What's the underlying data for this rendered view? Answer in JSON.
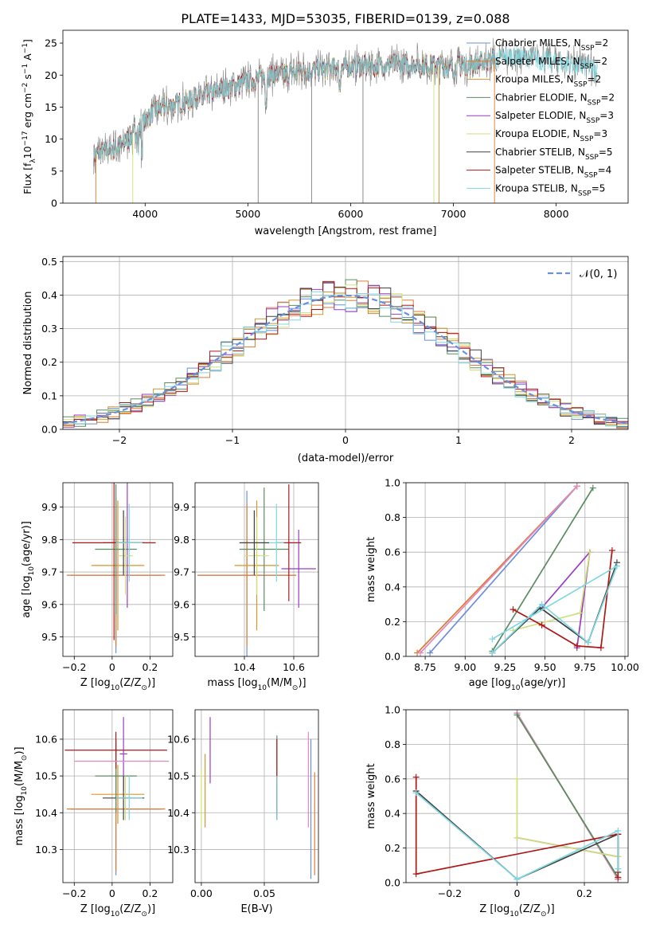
{
  "figure_title": "PLATE=1433, MJD=53035, FIBERID=0139, z=0.088",
  "series_colors": [
    "#6a8fdb",
    "#e07a30",
    "#d6962a",
    "#5c8c62",
    "#9a3cc4",
    "#cfe07a",
    "#404040",
    "#b01818",
    "#7fd8e0"
  ],
  "chart_data": [
    {
      "id": "spectrum",
      "type": "line",
      "xlabel": "wavelength [Angstrom, rest frame]",
      "ylabel": "Flux [f",
      "ylabel_sub": "λ",
      "ylabel_rest": "10",
      "ylabel_exp": "−17",
      "ylabel_unit": " erg cm",
      "ylabel_unit2": " s",
      "ylabel_unit3": " A",
      "xlim": [
        3200,
        8700
      ],
      "ylim": [
        0,
        27
      ],
      "xticks": [
        4000,
        5000,
        6000,
        7000,
        8000
      ],
      "yticks": [
        0,
        5,
        10,
        15,
        20,
        25
      ],
      "legend": [
        {
          "name": "Chabrier MILES, N",
          "sub": "SSP",
          "tail": "=2"
        },
        {
          "name": "Salpeter MILES, N",
          "sub": "SSP",
          "tail": "=2"
        },
        {
          "name": "Kroupa MILES, N",
          "sub": "SSP",
          "tail": "=2"
        },
        {
          "name": "Chabrier ELODIE, N",
          "sub": "SSP",
          "tail": "=2"
        },
        {
          "name": "Salpeter ELODIE, N",
          "sub": "SSP",
          "tail": "=3"
        },
        {
          "name": "Kroupa ELODIE, N",
          "sub": "SSP",
          "tail": "=3"
        },
        {
          "name": "Chabrier STELIB, N",
          "sub": "SSP",
          "tail": "=5"
        },
        {
          "name": "Salpeter STELIB, N",
          "sub": "SSP",
          "tail": "=4"
        },
        {
          "name": "Kroupa STELIB, N",
          "sub": "SSP",
          "tail": "=5"
        }
      ],
      "continuum": {
        "x": [
          3500,
          3600,
          3700,
          3800,
          3900,
          4000,
          4100,
          4300,
          4500,
          4700,
          5000,
          5200,
          5500,
          5800,
          6000,
          6300,
          6600,
          6800,
          7000,
          7200,
          7400,
          7600,
          7800,
          8000,
          8200,
          8400
        ],
        "y": [
          7.5,
          8.0,
          8.5,
          9.5,
          11.0,
          13.0,
          14.5,
          15.5,
          16.5,
          17.5,
          19.0,
          19.8,
          20.5,
          21.0,
          21.3,
          21.5,
          21.8,
          21.5,
          21.2,
          21.8,
          22.5,
          23.0,
          22.5,
          22.0,
          21.5,
          21.0
        ]
      }
    },
    {
      "id": "residual_hist",
      "type": "histogram",
      "xlabel": "(data-model)/error",
      "ylabel": "Normed distribution",
      "xlim": [
        -2.5,
        2.5
      ],
      "ylim": [
        0,
        0.515
      ],
      "xticks": [
        -2,
        -1,
        0,
        1,
        2
      ],
      "yticks": [
        0.0,
        0.1,
        0.2,
        0.3,
        0.4,
        0.5
      ],
      "legend": "𝒩(0, 1)",
      "bin_width": 0.1
    },
    {
      "id": "age_vs_Z",
      "type": "errorbar",
      "xlabel": "Z [log",
      "xlabel_sub": "10",
      "xlabel_rest": "(Z/Z",
      "xlabel_sub2": "⊙",
      "xlabel_end": ")]",
      "ylabel": "age  [log",
      "ylabel_sub": "10",
      "ylabel_rest": "(age/yr)]",
      "xlim": [
        -0.26,
        0.32
      ],
      "ylim": [
        9.44,
        9.975
      ],
      "xticks": [
        -0.2,
        0.0,
        0.2
      ],
      "yticks": [
        9.5,
        9.6,
        9.7,
        9.8,
        9.9
      ],
      "points": [
        {
          "x": 0.02,
          "xerr": 0.24,
          "y": 9.69,
          "yerr": 0.24
        },
        {
          "x": 0.02,
          "xerr": 0.26,
          "y": 9.69,
          "yerr": 0.22
        },
        {
          "x": 0.03,
          "xerr": 0.14,
          "y": 9.72,
          "yerr": 0.2
        },
        {
          "x": 0.02,
          "xerr": 0.11,
          "y": 9.77,
          "yerr": 0.2
        },
        {
          "x": 0.08,
          "xerr": 0.08,
          "y": 9.79,
          "yerr": 0.2
        },
        {
          "x": 0.07,
          "xerr": 0.04,
          "y": 9.75,
          "yerr": 0.12
        },
        {
          "x": 0.06,
          "xerr": 0.11,
          "y": 9.79,
          "yerr": 0.1
        },
        {
          "x": 0.01,
          "xerr": 0.22,
          "y": 9.79,
          "yerr": 0.3
        },
        {
          "x": 0.09,
          "xerr": 0.07,
          "y": 9.79,
          "yerr": 0.12
        }
      ]
    },
    {
      "id": "age_vs_mass",
      "type": "errorbar",
      "xlabel": "mass [log",
      "xlabel_sub": "10",
      "xlabel_rest": "(M/M",
      "xlabel_sub2": "⊙",
      "xlabel_end": ")]",
      "xlim": [
        10.2,
        10.7
      ],
      "ylim": [
        9.44,
        9.975
      ],
      "xticks": [
        10.4,
        10.6
      ],
      "yticks": [
        9.5,
        9.6,
        9.7,
        9.8,
        9.9
      ],
      "points": [
        {
          "x": 10.41,
          "xerr": 0.2,
          "y": 9.69,
          "yerr": 0.26
        },
        {
          "x": 10.41,
          "xerr": 0.2,
          "y": 9.69,
          "yerr": 0.22
        },
        {
          "x": 10.45,
          "xerr": 0.09,
          "y": 9.72,
          "yerr": 0.2
        },
        {
          "x": 10.48,
          "xerr": 0.1,
          "y": 9.77,
          "yerr": 0.19
        },
        {
          "x": 10.62,
          "xerr": 0.07,
          "y": 9.71,
          "yerr": 0.12
        },
        {
          "x": 10.45,
          "xerr": 0.05,
          "y": 9.75,
          "yerr": 0.12
        },
        {
          "x": 10.44,
          "xerr": 0.06,
          "y": 9.79,
          "yerr": 0.1
        },
        {
          "x": 10.58,
          "xerr": 0.05,
          "y": 9.79,
          "yerr": 0.18
        },
        {
          "x": 10.53,
          "xerr": 0.03,
          "y": 9.79,
          "yerr": 0.12
        }
      ]
    },
    {
      "id": "weight_vs_age",
      "type": "line",
      "xlabel": "age  [log",
      "xlabel_sub": "10",
      "xlabel_rest": "(age/yr)]",
      "ylabel": "mass weight",
      "xlim": [
        8.63,
        10.02
      ],
      "ylim": [
        0,
        1.0
      ],
      "xticks": [
        8.75,
        9.0,
        9.25,
        9.5,
        9.75,
        10.0
      ],
      "xtick_labels": [
        "8.75",
        "9.00",
        "9.25",
        "9.50",
        "9.75",
        "10.00"
      ],
      "yticks": [
        0.0,
        0.2,
        0.4,
        0.6,
        0.8,
        1.0
      ],
      "series": [
        {
          "x": [
            8.78,
            9.7
          ],
          "y": [
            0.02,
            0.98
          ]
        },
        {
          "x": [
            8.7,
            9.7
          ],
          "y": [
            0.02,
            0.98
          ]
        },
        {
          "x": [
            8.72,
            9.7
          ],
          "y": [
            0.02,
            0.98
          ]
        },
        {
          "x": [
            9.17,
            9.8
          ],
          "y": [
            0.03,
            0.97
          ]
        },
        {
          "x": [
            9.7,
            9.78,
            9.48
          ],
          "y": [
            0.05,
            0.6,
            0.28
          ]
        },
        {
          "x": [
            9.3,
            9.72,
            9.78
          ],
          "y": [
            0.15,
            0.25,
            0.6
          ]
        },
        {
          "x": [
            9.17,
            9.47,
            9.77,
            9.95
          ],
          "y": [
            0.02,
            0.28,
            0.08,
            0.54
          ]
        },
        {
          "x": [
            9.3,
            9.48,
            9.7,
            9.85,
            9.92
          ],
          "y": [
            0.27,
            0.18,
            0.06,
            0.05,
            0.61
          ]
        },
        {
          "x": [
            9.17,
            9.48,
            9.77,
            9.95,
            9.17
          ],
          "y": [
            0.02,
            0.3,
            0.08,
            0.52,
            0.1
          ]
        }
      ]
    },
    {
      "id": "mass_vs_Z",
      "type": "errorbar",
      "xlabel": "Z [log",
      "xlabel_sub": "10",
      "xlabel_rest": "(Z/Z",
      "xlabel_sub2": "⊙",
      "xlabel_end": ")]",
      "ylabel": "mass [log",
      "ylabel_sub": "10",
      "ylabel_rest": "(M/M",
      "ylabel_sub2": "⊙",
      "ylabel_end": ")]",
      "xlim": [
        -0.26,
        0.32
      ],
      "ylim": [
        10.21,
        10.68
      ],
      "xticks": [
        -0.2,
        0.0,
        0.2
      ],
      "yticks": [
        10.3,
        10.4,
        10.5,
        10.6
      ],
      "points": [
        {
          "x": 0.02,
          "xerr": 0.24,
          "y": 10.41,
          "yerr": 0.18
        },
        {
          "x": 0.02,
          "xerr": 0.26,
          "y": 10.41,
          "yerr": 0.17
        },
        {
          "x": 0.03,
          "xerr": 0.14,
          "y": 10.45,
          "yerr": 0.08
        },
        {
          "x": 0.02,
          "xerr": 0.11,
          "y": 10.5,
          "yerr": 0.1
        },
        {
          "x": 0.06,
          "xerr": 0.02,
          "y": 10.56,
          "yerr": 0.1
        },
        {
          "x": 0.07,
          "xerr": 0.04,
          "y": 10.44,
          "yerr": 0.06
        },
        {
          "x": 0.06,
          "xerr": 0.11,
          "y": 10.44,
          "yerr": 0.06
        },
        {
          "x": 0.02,
          "xerr": 0.27,
          "y": 10.57,
          "yerr": 0.05
        },
        {
          "x": 0.09,
          "xerr": 0.07,
          "y": 10.44,
          "yerr": 0.06
        }
      ],
      "extra": {
        "x": 0.05,
        "xerr": 0.25,
        "y": 10.54,
        "yerr": 0.0
      }
    },
    {
      "id": "mass_vs_ebv",
      "type": "errorbar",
      "xlabel": "E(B-V)",
      "xlim": [
        -0.005,
        0.093
      ],
      "ylim": [
        10.21,
        10.68
      ],
      "xticks": [
        0.0,
        0.05
      ],
      "xtick_labels": [
        "0.00",
        "0.05"
      ],
      "yticks": [
        10.3,
        10.4,
        10.5,
        10.6
      ],
      "points": [
        {
          "x": 0.087,
          "y": 10.41,
          "yerr": 0.19
        },
        {
          "x": 0.09,
          "y": 10.37,
          "yerr": 0.14
        },
        {
          "x": 0.003,
          "y": 10.46,
          "yerr": 0.1
        },
        {
          "x": 0.06,
          "y": 10.5,
          "yerr": 0.11
        },
        {
          "x": 0.007,
          "y": 10.57,
          "yerr": 0.09
        },
        {
          "x": 0.0,
          "y": 10.44,
          "yerr": 0.08
        },
        {
          "x": 0.06,
          "y": 10.44,
          "yerr": 0.06
        },
        {
          "x": 0.06,
          "y": 10.5,
          "yerr": 0.1
        },
        {
          "x": 0.06,
          "y": 10.44,
          "yerr": 0.06
        }
      ],
      "extra": {
        "x": 0.085,
        "y": 10.49,
        "yerr": 0.13
      }
    },
    {
      "id": "weight_vs_Z",
      "type": "line",
      "xlabel": "Z [log",
      "xlabel_sub": "10",
      "xlabel_rest": "(Z/Z",
      "xlabel_sub2": "⊙",
      "xlabel_end": ")]",
      "ylabel": "mass weight",
      "xlim": [
        -0.33,
        0.33
      ],
      "ylim": [
        0,
        1.0
      ],
      "xticks": [
        -0.2,
        0.0,
        0.2
      ],
      "yticks": [
        0.0,
        0.2,
        0.4,
        0.6,
        0.8,
        1.0
      ],
      "series": [
        {
          "x": [
            0.0,
            0.3
          ],
          "y": [
            0.98,
            0.02
          ]
        },
        {
          "x": [
            0.0,
            0.3
          ],
          "y": [
            0.98,
            0.02
          ]
        },
        {
          "x": [
            0.0,
            0.3
          ],
          "y": [
            0.98,
            0.02
          ]
        },
        {
          "x": [
            0.0,
            0.3
          ],
          "y": [
            0.97,
            0.03
          ]
        },
        {
          "x": [
            0.0,
            0.3,
            0.3
          ],
          "y": [
            0.26,
            0.15,
            0.28
          ]
        },
        {
          "x": [
            0.0,
            0.0,
            0.3,
            0.3
          ],
          "y": [
            0.6,
            0.26,
            0.15,
            0.03
          ]
        },
        {
          "x": [
            -0.3,
            0.0,
            0.3,
            0.3
          ],
          "y": [
            0.53,
            0.02,
            0.28,
            0.06
          ]
        },
        {
          "x": [
            -0.3,
            -0.3,
            0.3,
            0.3
          ],
          "y": [
            0.61,
            0.05,
            0.28,
            0.03
          ]
        },
        {
          "x": [
            -0.3,
            0.0,
            0.3,
            0.3
          ],
          "y": [
            0.52,
            0.02,
            0.3,
            0.08
          ]
        }
      ]
    }
  ]
}
